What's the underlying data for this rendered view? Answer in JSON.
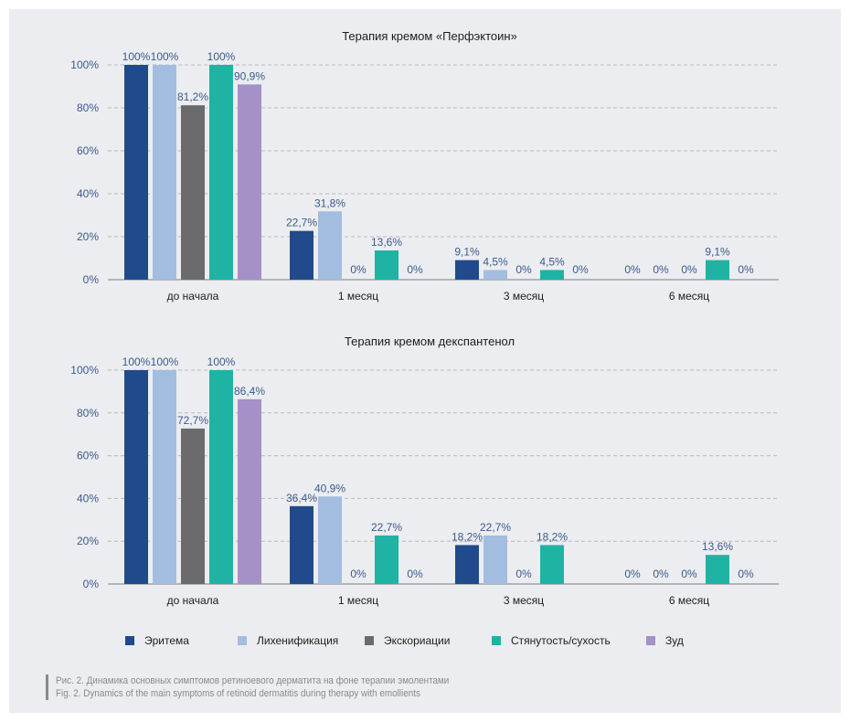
{
  "legend": [
    {
      "name": "Эритема",
      "color": "#214a8c"
    },
    {
      "name": "Лихенификация",
      "color": "#a3bde0"
    },
    {
      "name": "Экскориации",
      "color": "#6b6b6d"
    },
    {
      "name": "Стянутость/сухость",
      "color": "#1fb3a3"
    },
    {
      "name": "Зуд",
      "color": "#a391c8"
    }
  ],
  "chart_data": [
    {
      "type": "bar",
      "title": "Терапия кремом «Перфэктоин»",
      "categories": [
        "до начала",
        "1 месяц",
        "3 месяц",
        "6 месяц"
      ],
      "yticks": [
        "0%",
        "20%",
        "40%",
        "60%",
        "80%",
        "100%"
      ],
      "ylim": [
        0,
        100
      ],
      "grid": true,
      "series": [
        {
          "name": "Эритема",
          "values": [
            100,
            22.7,
            9.1,
            0
          ],
          "labels": [
            "100%",
            "22,7%",
            "9,1%",
            "0%"
          ]
        },
        {
          "name": "Лихенификация",
          "values": [
            100,
            31.8,
            4.5,
            0
          ],
          "labels": [
            "100%",
            "31,8%",
            "4,5%",
            "0%"
          ]
        },
        {
          "name": "Экскориации",
          "values": [
            81.2,
            0,
            0,
            0
          ],
          "labels": [
            "81,2%",
            "0%",
            "0%",
            "0%"
          ]
        },
        {
          "name": "Стянутость/сухость",
          "values": [
            100,
            13.6,
            4.5,
            9.1
          ],
          "labels": [
            "100%",
            "13,6%",
            "4,5%",
            "9,1%"
          ]
        },
        {
          "name": "Зуд",
          "values": [
            90.9,
            0,
            0,
            0
          ],
          "labels": [
            "90,9%",
            "0%",
            "0%",
            "0%"
          ]
        }
      ]
    },
    {
      "type": "bar",
      "title": "Терапия кремом декспантенол",
      "categories": [
        "до начала",
        "1 месяц",
        "3 месяц",
        "6 месяц"
      ],
      "yticks": [
        "0%",
        "20%",
        "40%",
        "60%",
        "80%",
        "100%"
      ],
      "ylim": [
        0,
        100
      ],
      "grid": true,
      "series": [
        {
          "name": "Эритема",
          "values": [
            100,
            36.4,
            18.2,
            0
          ],
          "labels": [
            "100%",
            "36,4%",
            "18,2%",
            "0%"
          ]
        },
        {
          "name": "Лихенификация",
          "values": [
            100,
            40.9,
            22.7,
            0
          ],
          "labels": [
            "100%",
            "40,9%",
            "22,7%",
            "0%"
          ]
        },
        {
          "name": "Экскориации",
          "values": [
            72.7,
            0,
            0,
            0
          ],
          "labels": [
            "72,7%",
            "0%",
            "0%",
            "0%"
          ]
        },
        {
          "name": "Стянутость/сухость",
          "values": [
            100,
            22.7,
            18.2,
            13.6
          ],
          "labels": [
            "100%",
            "22,7%",
            "18,2%",
            "13,6%"
          ]
        },
        {
          "name": "Зуд",
          "values": [
            86.4,
            0,
            null,
            0
          ],
          "labels": [
            "86,4%",
            "0%",
            "",
            "0%"
          ]
        }
      ]
    }
  ],
  "caption": {
    "ru": "Рис. 2. Динамика основных симптомов ретиноевого дерматита на фоне терапии эмолентами",
    "en": "Fig. 2. Dynamics of the main symptoms of retinoid dermatitis during therapy with emollients"
  }
}
